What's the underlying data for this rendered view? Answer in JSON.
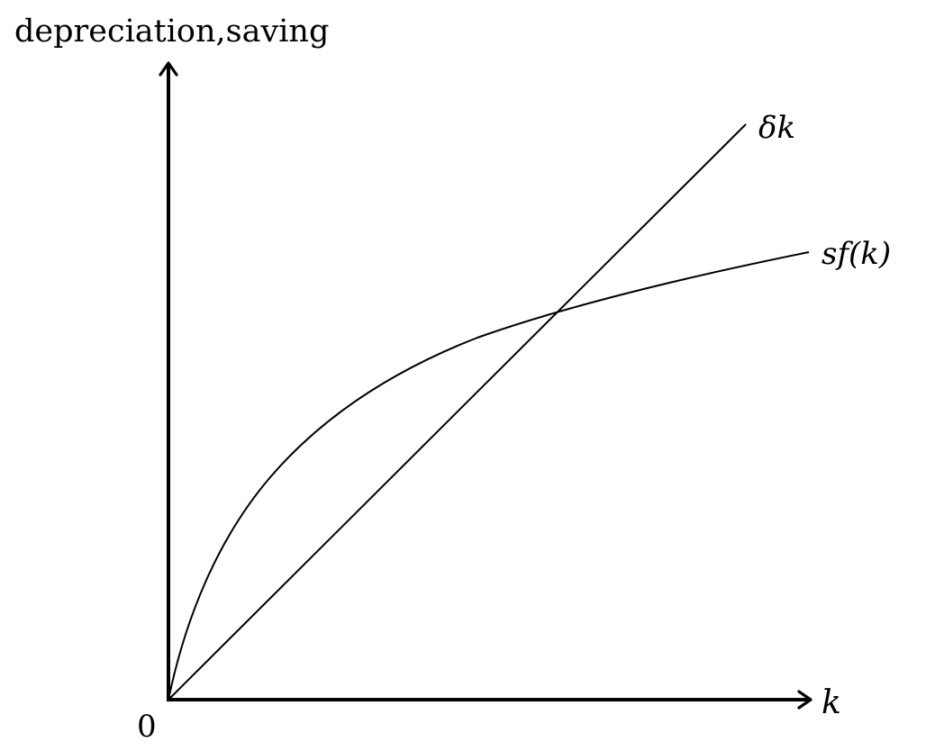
{
  "diagram": {
    "y_axis_label": "depreciation,saving",
    "x_axis_label": "k",
    "origin_label": "0",
    "depreciation_line_label": "δk",
    "saving_curve_label": "sf(k)"
  }
}
